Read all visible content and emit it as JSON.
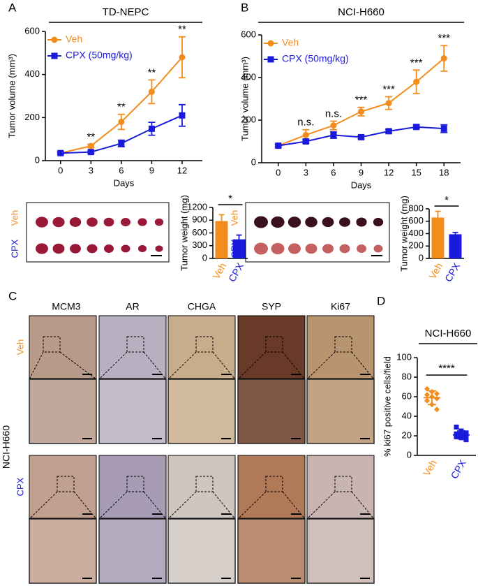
{
  "figure": {
    "panel_labels": [
      "A",
      "B",
      "C",
      "D"
    ],
    "photo_labels": [
      [
        "Veh",
        "CPX"
      ],
      [
        "Veh",
        "CPX"
      ]
    ],
    "ihc_columns": [
      "MCM3",
      "AR",
      "CHGA",
      "SYP",
      "Ki67"
    ],
    "ihc_rows": [
      "Veh",
      "CPX"
    ],
    "ihc_side_label": "NCI-H660"
  },
  "chart_data": [
    {
      "type": "line",
      "title": "TD-NEPC",
      "xlabel": "Days",
      "ylabel": "Tumor volume (mm³)",
      "x": [
        0,
        3,
        6,
        9,
        12
      ],
      "xlim": [
        -1.5,
        14
      ],
      "xticks": [
        0,
        3,
        6,
        9,
        12
      ],
      "ylim": [
        0,
        600
      ],
      "yticks": [
        0,
        200,
        400,
        600
      ],
      "series": [
        {
          "name": "Veh",
          "color": "#f28c1c",
          "marker": "circle",
          "values": [
            35,
            68,
            180,
            320,
            480
          ],
          "errors": [
            5,
            8,
            35,
            55,
            95
          ]
        },
        {
          "name": "CPX (50mg/kg)",
          "color": "#1a1adc",
          "marker": "square",
          "values": [
            35,
            40,
            80,
            148,
            210
          ],
          "errors": [
            5,
            5,
            15,
            30,
            50
          ]
        }
      ],
      "annotations": [
        {
          "x": 3,
          "text": "**"
        },
        {
          "x": 6,
          "text": "**"
        },
        {
          "x": 9,
          "text": "**"
        },
        {
          "x": 12,
          "text": "**"
        }
      ]
    },
    {
      "type": "line",
      "title": "NCI-H660",
      "xlabel": "Days",
      "ylabel": "Tumor volume (mm³)",
      "x": [
        0,
        3,
        6,
        9,
        12,
        15,
        18
      ],
      "xlim": [
        -1.8,
        19.8
      ],
      "xticks": [
        0,
        3,
        6,
        9,
        12,
        15,
        18
      ],
      "ylim": [
        0,
        600
      ],
      "yticks": [
        0,
        200,
        400,
        600
      ],
      "series": [
        {
          "name": "Veh",
          "color": "#f28c1c",
          "marker": "circle",
          "values": [
            80,
            130,
            175,
            240,
            280,
            380,
            490
          ],
          "errors": [
            8,
            25,
            20,
            20,
            30,
            55,
            60
          ]
        },
        {
          "name": "CPX (50mg/kg)",
          "color": "#1a1adc",
          "marker": "square",
          "values": [
            80,
            100,
            130,
            120,
            148,
            168,
            160
          ],
          "errors": [
            5,
            8,
            15,
            8,
            8,
            8,
            18
          ]
        }
      ],
      "annotations": [
        {
          "x": 3,
          "text": "n.s."
        },
        {
          "x": 6,
          "text": "n.s."
        },
        {
          "x": 9,
          "text": "***"
        },
        {
          "x": 12,
          "text": "***"
        },
        {
          "x": 15,
          "text": "***"
        },
        {
          "x": 18,
          "text": "***"
        }
      ]
    },
    {
      "type": "bar",
      "ylabel": "Tumor weight (mg)",
      "categories": [
        "Veh",
        "CPX"
      ],
      "colors": [
        "#f28c1c",
        "#1a1adc"
      ],
      "values": [
        880,
        450
      ],
      "errors": [
        150,
        100
      ],
      "ylim": [
        0,
        1200
      ],
      "yticks": [
        0,
        300,
        600,
        900,
        1200
      ],
      "significance": "*"
    },
    {
      "type": "bar",
      "ylabel": "Tumor weight (mg)",
      "categories": [
        "Veh",
        "CPX"
      ],
      "colors": [
        "#f28c1c",
        "#1a1adc"
      ],
      "values": [
        660,
        390
      ],
      "errors": [
        100,
        30
      ],
      "ylim": [
        0,
        800
      ],
      "yticks": [
        0,
        200,
        400,
        600,
        800
      ],
      "significance": "*"
    },
    {
      "type": "dot",
      "title": "NCI-H660",
      "ylabel": "% ki67 positive cells/field",
      "categories": [
        "Veh",
        "CPX"
      ],
      "colors": [
        "#f28c1c",
        "#1a1adc"
      ],
      "points": [
        [
          68,
          65,
          63,
          62,
          60,
          58,
          56,
          52,
          47
        ],
        [
          29,
          25,
          23,
          22,
          21,
          20,
          19,
          18,
          16
        ]
      ],
      "means": [
        59,
        21
      ],
      "sds": [
        7,
        4
      ],
      "ylim": [
        0,
        100
      ],
      "yticks": [
        0,
        20,
        40,
        60,
        80,
        100
      ],
      "significance": "****"
    }
  ]
}
